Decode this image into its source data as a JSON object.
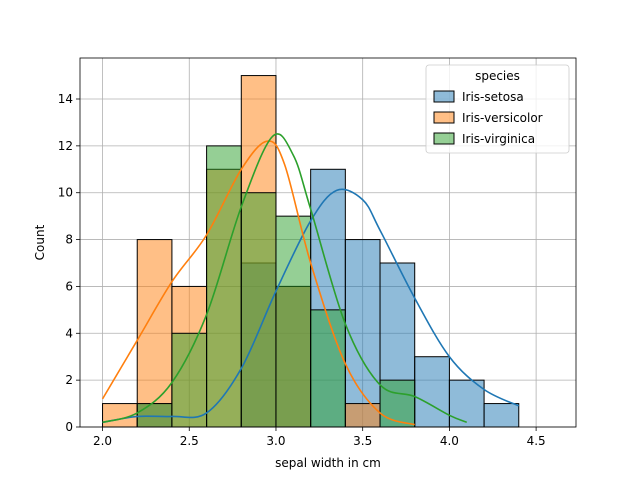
{
  "chart_data": {
    "type": "histogram",
    "title": "",
    "xlabel": "sepal width in cm",
    "ylabel": "Count",
    "xlim": [
      1.87,
      4.73
    ],
    "ylim": [
      0,
      15.75
    ],
    "xticks": [
      "2.0",
      "2.5",
      "3.0",
      "3.5",
      "4.0",
      "4.5"
    ],
    "xtick_values": [
      2.0,
      2.5,
      3.0,
      3.5,
      4.0,
      4.5
    ],
    "yticks": [
      "0",
      "2",
      "4",
      "6",
      "8",
      "10",
      "12",
      "14"
    ],
    "ytick_values": [
      0,
      2,
      4,
      6,
      8,
      10,
      12,
      14
    ],
    "grid": true,
    "legend": {
      "title": "species",
      "placement": "top-right",
      "entries": [
        "Iris-setosa",
        "Iris-versicolor",
        "Iris-virginica"
      ]
    },
    "bin_edges": [
      2.0,
      2.2,
      2.4,
      2.6,
      2.8,
      3.0,
      3.2,
      3.4,
      3.6,
      3.8,
      4.0,
      4.2,
      4.4,
      4.6
    ],
    "series": [
      {
        "name": "Iris-setosa",
        "color": "#1f77b4",
        "counts": [
          0,
          1,
          0,
          0,
          7,
          6,
          11,
          8,
          7,
          3,
          2,
          1,
          0
        ],
        "kde": [
          [
            2.0,
            0.2
          ],
          [
            2.2,
            0.45
          ],
          [
            2.4,
            0.45
          ],
          [
            2.6,
            0.6
          ],
          [
            2.8,
            2.5
          ],
          [
            3.0,
            5.8
          ],
          [
            3.2,
            8.8
          ],
          [
            3.35,
            10.1
          ],
          [
            3.5,
            9.7
          ],
          [
            3.6,
            8.4
          ],
          [
            3.8,
            5.5
          ],
          [
            4.0,
            3.0
          ],
          [
            4.2,
            1.6
          ],
          [
            4.4,
            0.9
          ]
        ]
      },
      {
        "name": "Iris-versicolor",
        "color": "#ff7f0e",
        "counts": [
          1,
          8,
          6,
          11,
          15,
          6,
          0,
          1,
          0,
          0,
          0,
          0,
          0
        ],
        "kde": [
          [
            2.0,
            1.2
          ],
          [
            2.2,
            3.7
          ],
          [
            2.4,
            6.2
          ],
          [
            2.6,
            8.2
          ],
          [
            2.8,
            11.0
          ],
          [
            2.95,
            12.2
          ],
          [
            3.05,
            11.2
          ],
          [
            3.2,
            7.0
          ],
          [
            3.4,
            2.7
          ],
          [
            3.6,
            0.6
          ],
          [
            3.8,
            0.1
          ]
        ]
      },
      {
        "name": "Iris-virginica",
        "color": "#2ca02c",
        "counts": [
          0,
          1,
          4,
          12,
          10,
          9,
          5,
          0,
          2,
          0,
          0,
          0,
          0
        ],
        "kde": [
          [
            2.0,
            0.2
          ],
          [
            2.2,
            0.6
          ],
          [
            2.4,
            1.9
          ],
          [
            2.6,
            4.8
          ],
          [
            2.8,
            9.4
          ],
          [
            2.98,
            12.4
          ],
          [
            3.1,
            11.6
          ],
          [
            3.2,
            9.3
          ],
          [
            3.4,
            4.4
          ],
          [
            3.6,
            1.8
          ],
          [
            3.8,
            1.3
          ],
          [
            4.0,
            0.5
          ],
          [
            4.1,
            0.2
          ]
        ]
      }
    ]
  }
}
